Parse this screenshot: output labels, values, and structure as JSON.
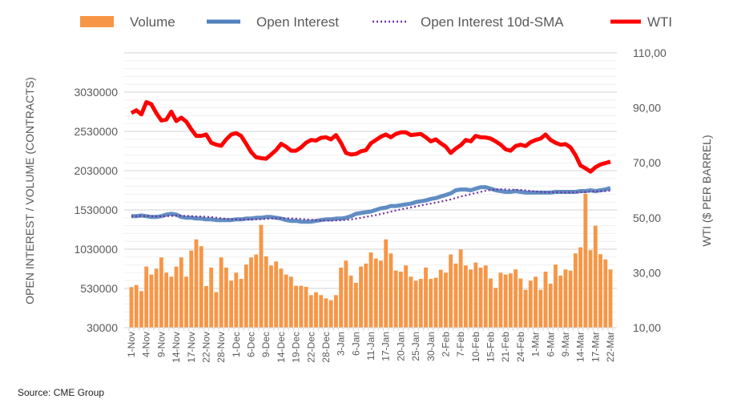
{
  "chart_data": {
    "type": "bar+line",
    "title": "",
    "source": "Source: CME Group",
    "ylabel_left": "OPEN INTEREST / VOLUME (CONTRACTS)",
    "ylabel_right": "WTI ($ PER BARREL)",
    "ylim_left": [
      30000,
      3530000
    ],
    "ylim_right": [
      10,
      110
    ],
    "yticks_left": [
      "30000",
      "530000",
      "1030000",
      "1530000",
      "2030000",
      "2530000",
      "3030000"
    ],
    "yticks_right": [
      "10,00",
      "30,00",
      "50,00",
      "70,00",
      "90,00",
      "110,00"
    ],
    "grid": true,
    "legend_position": "top",
    "legend": [
      "Volume",
      "Open Interest",
      "Open Interest 10d-SMA",
      "WTI"
    ],
    "colors": {
      "volume": "#F79646",
      "open_interest": "#4F81BD",
      "sma": "#7030A0",
      "wti": "#FF0000"
    },
    "xtick_labels": [
      "1-Nov",
      "4-Nov",
      "9-Nov",
      "14-Nov",
      "17-Nov",
      "22-Nov",
      "28-Nov",
      "1-Dec",
      "6-Dec",
      "9-Dec",
      "14-Dec",
      "19-Dec",
      "22-Dec",
      "28-Dec",
      "3-Jan",
      "6-Jan",
      "11-Jan",
      "17-Jan",
      "20-Jan",
      "25-Jan",
      "30-Jan",
      "2-Feb",
      "7-Feb",
      "10-Feb",
      "15-Feb",
      "21-Feb",
      "24-Feb",
      "1-Mar",
      "6-Mar",
      "9-Mar",
      "14-Mar",
      "17-Mar",
      "22-Mar"
    ],
    "xtick_every": 3,
    "sma_window": 10,
    "series": [
      {
        "name": "Volume",
        "kind": "bar",
        "axis": "left",
        "values": [
          547000,
          574000,
          496000,
          809000,
          707000,
          782000,
          925000,
          731000,
          680000,
          809000,
          925000,
          680000,
          1013000,
          1155000,
          1068000,
          561000,
          795000,
          482000,
          925000,
          795000,
          629000,
          731000,
          652000,
          833000,
          925000,
          962000,
          1339000,
          938000,
          823000,
          874000,
          782000,
          707000,
          680000,
          564000,
          564000,
          550000,
          445000,
          482000,
          445000,
          404000,
          380000,
          445000,
          795000,
          884000,
          693000,
          601000,
          809000,
          846000,
          989000,
          911000,
          884000,
          1155000,
          976000,
          758000,
          744000,
          823000,
          680000,
          629000,
          652000,
          795000,
          652000,
          666000,
          768000,
          731000,
          962000,
          846000,
          1027000,
          823000,
          772000,
          860000,
          795000,
          823000,
          656000,
          537000,
          731000,
          707000,
          721000,
          772000,
          656000,
          513000,
          629000,
          680000,
          513000,
          744000,
          591000,
          833000,
          693000,
          772000,
          758000,
          976000,
          1054000,
          1737000,
          1017000,
          1329000,
          966000,
          900000,
          772000
        ]
      },
      {
        "name": "Open Interest",
        "kind": "line",
        "axis": "left",
        "values": [
          1450000,
          1450000,
          1460000,
          1450000,
          1440000,
          1440000,
          1450000,
          1470000,
          1480000,
          1470000,
          1440000,
          1430000,
          1430000,
          1420000,
          1420000,
          1410000,
          1410000,
          1400000,
          1400000,
          1400000,
          1400000,
          1410000,
          1410000,
          1420000,
          1420000,
          1430000,
          1430000,
          1440000,
          1440000,
          1430000,
          1420000,
          1400000,
          1390000,
          1390000,
          1380000,
          1380000,
          1380000,
          1390000,
          1400000,
          1410000,
          1410000,
          1420000,
          1420000,
          1430000,
          1450000,
          1480000,
          1490000,
          1500000,
          1510000,
          1530000,
          1550000,
          1560000,
          1580000,
          1580000,
          1590000,
          1600000,
          1610000,
          1630000,
          1640000,
          1650000,
          1670000,
          1680000,
          1700000,
          1720000,
          1740000,
          1780000,
          1790000,
          1790000,
          1780000,
          1800000,
          1820000,
          1820000,
          1800000,
          1780000,
          1770000,
          1760000,
          1760000,
          1770000,
          1760000,
          1750000,
          1750000,
          1750000,
          1750000,
          1750000,
          1750000,
          1760000,
          1760000,
          1760000,
          1760000,
          1760000,
          1770000,
          1770000,
          1780000,
          1770000,
          1780000,
          1790000,
          1810000
        ]
      },
      {
        "name": "WTI",
        "kind": "line",
        "axis": "right",
        "values": [
          88.1,
          89.1,
          87.6,
          92.1,
          91.3,
          88.1,
          85.4,
          85.7,
          88.6,
          85.2,
          86.4,
          85.0,
          82.2,
          79.8,
          79.8,
          80.3,
          77.3,
          76.6,
          76.2,
          78.5,
          80.3,
          80.8,
          79.8,
          76.9,
          73.9,
          72.0,
          71.7,
          71.5,
          73.0,
          74.6,
          76.9,
          75.9,
          74.4,
          74.4,
          75.6,
          77.3,
          78.3,
          78.1,
          79.1,
          79.3,
          78.5,
          80.1,
          77.3,
          73.6,
          73.0,
          73.2,
          74.2,
          74.6,
          77.1,
          78.3,
          79.5,
          80.3,
          79.3,
          80.5,
          81.1,
          81.1,
          80.1,
          80.3,
          80.5,
          79.3,
          77.8,
          78.5,
          77.1,
          75.9,
          73.6,
          75.2,
          76.4,
          78.3,
          77.8,
          79.8,
          79.3,
          79.2,
          78.8,
          77.8,
          76.6,
          74.9,
          74.4,
          76.1,
          76.6,
          76.1,
          77.5,
          78.3,
          78.8,
          80.3,
          78.3,
          77.3,
          76.6,
          76.8,
          75.6,
          72.8,
          69.0,
          68.0,
          66.8,
          68.4,
          69.4,
          69.9,
          70.4
        ]
      }
    ]
  }
}
